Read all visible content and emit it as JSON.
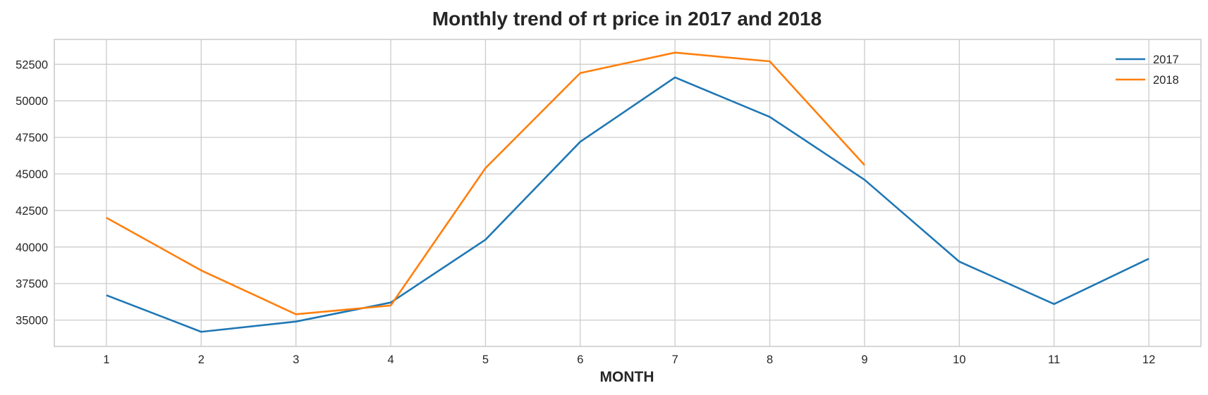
{
  "chart_data": {
    "type": "line",
    "title": "Monthly trend of rt price in 2017 and 2018",
    "xlabel": "MONTH",
    "ylabel": "",
    "x": [
      1,
      2,
      3,
      4,
      5,
      6,
      7,
      8,
      9,
      10,
      11,
      12
    ],
    "xlim": [
      0.45,
      12.55
    ],
    "ylim": [
      33200,
      54200
    ],
    "yticks": [
      35000,
      37500,
      40000,
      42500,
      45000,
      47500,
      50000,
      52500
    ],
    "grid": true,
    "legend_position": "top-right",
    "series": [
      {
        "name": "2017",
        "color": "#1f77b4",
        "x": [
          1,
          2,
          3,
          4,
          5,
          6,
          7,
          8,
          9,
          10,
          11,
          12
        ],
        "values": [
          36700,
          34200,
          34900,
          36200,
          40500,
          47200,
          51600,
          48900,
          44600,
          39000,
          36100,
          39200
        ]
      },
      {
        "name": "2018",
        "color": "#ff7f0e",
        "x": [
          1,
          2,
          3,
          4,
          5,
          6,
          7,
          8,
          9
        ],
        "values": [
          42000,
          38400,
          35400,
          36000,
          45400,
          51900,
          53300,
          52700,
          45600
        ]
      }
    ]
  }
}
